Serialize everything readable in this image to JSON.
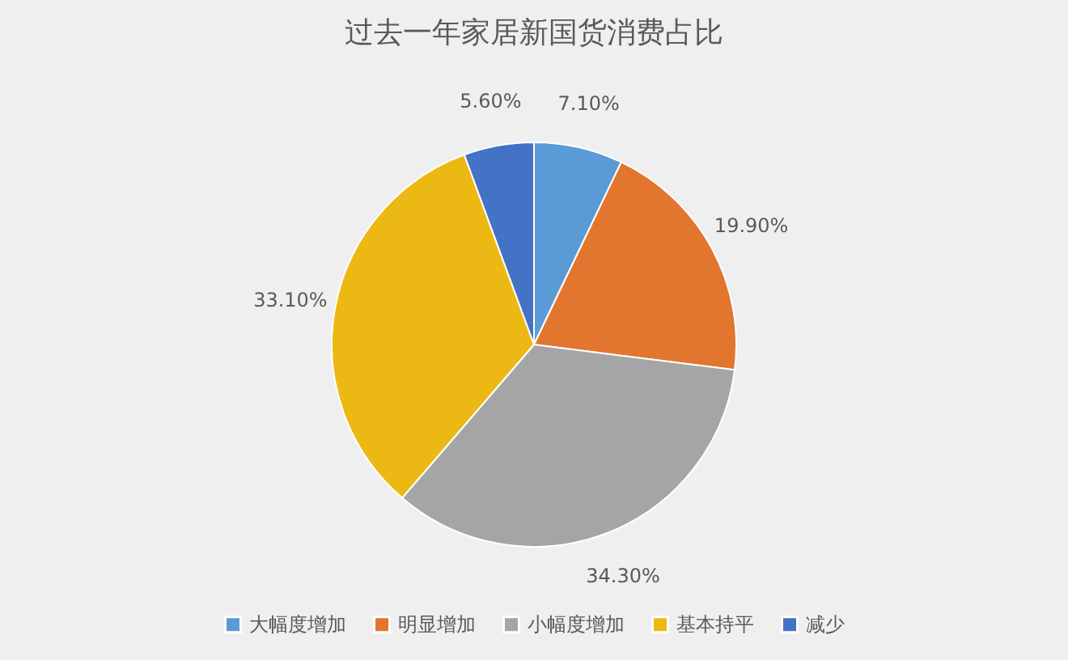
{
  "chart_data": {
    "type": "pie",
    "title": "过去一年家居新国货消费占比",
    "categories": [
      "大幅度增加",
      "明显增加",
      "小幅度增加",
      "基本持平",
      "减少"
    ],
    "values": [
      7.1,
      19.9,
      34.3,
      33.1,
      5.6
    ],
    "colors": [
      "#5b9bd5",
      "#e2762f",
      "#a5a5a5",
      "#ecb814",
      "#4472c4"
    ],
    "value_labels": [
      "7.10%",
      "19.90%",
      "34.30%",
      "33.10%",
      "5.60%"
    ],
    "legend": "bottom"
  }
}
